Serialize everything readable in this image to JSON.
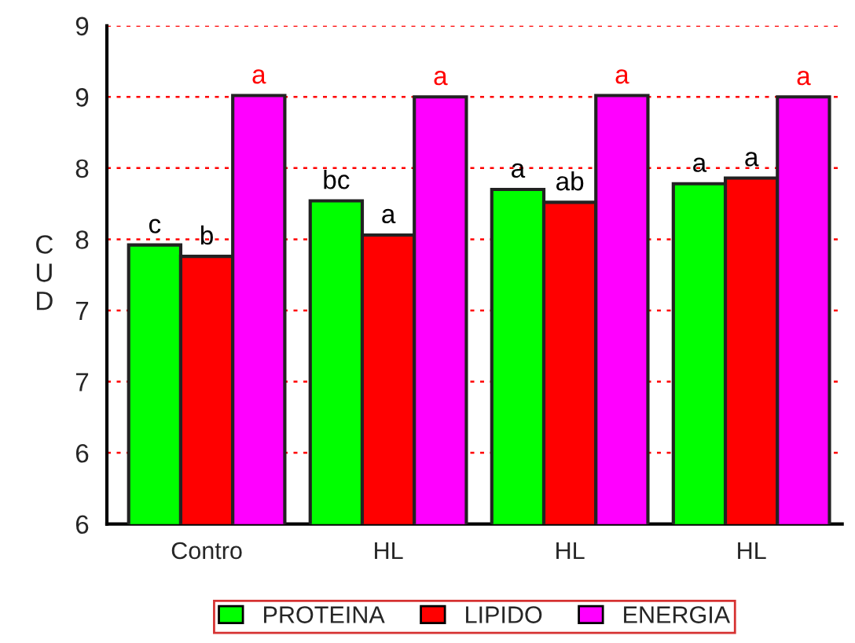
{
  "chart_data": {
    "type": "bar",
    "ylabel": "CUD",
    "categories": [
      "Contro",
      "HL",
      "HL",
      "HL"
    ],
    "series": [
      {
        "name": "PROTEINA",
        "color": "#00ff00",
        "values": [
          7.96,
          8.27,
          8.35,
          8.39
        ],
        "value_labels": [
          "c",
          "bc",
          "a",
          "a"
        ]
      },
      {
        "name": "LIPIDO",
        "color": "#ff0000",
        "values": [
          7.88,
          8.03,
          8.26,
          8.43
        ],
        "value_labels": [
          "b",
          "a",
          "ab",
          "a"
        ]
      },
      {
        "name": "ENERGIA",
        "color": "#ff00ff",
        "values": [
          9.01,
          9.0,
          9.01,
          9.0
        ],
        "value_labels": [
          "a",
          "a",
          "a",
          "a"
        ]
      }
    ],
    "ylim": [
      6,
      9.5
    ],
    "yticks": [
      {
        "value": 6,
        "label": "6"
      },
      {
        "value": 6.5,
        "label": "6"
      },
      {
        "value": 7,
        "label": "7"
      },
      {
        "value": 7.5,
        "label": "7"
      },
      {
        "value": 8,
        "label": "8"
      },
      {
        "value": 8.5,
        "label": "8"
      },
      {
        "value": 9,
        "label": "9"
      },
      {
        "value": 9.5,
        "label": "9"
      }
    ],
    "grid": "y",
    "legend": "bottom"
  }
}
